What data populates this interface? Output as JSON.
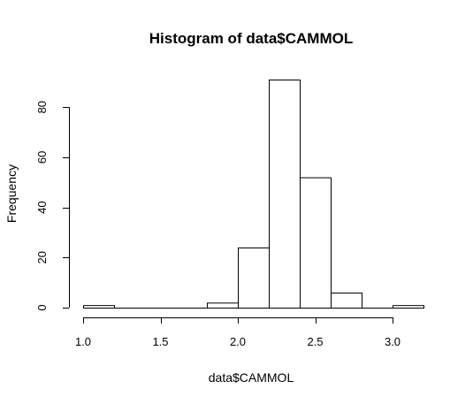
{
  "chart_data": {
    "type": "bar",
    "title": "Histogram of data$CAMMOL",
    "xlabel": "data$CAMMOL",
    "ylabel": "Frequency",
    "bins": [
      {
        "x0": 1.0,
        "x1": 1.2,
        "count": 1
      },
      {
        "x0": 1.2,
        "x1": 1.4,
        "count": 0
      },
      {
        "x0": 1.4,
        "x1": 1.6,
        "count": 0
      },
      {
        "x0": 1.6,
        "x1": 1.8,
        "count": 0
      },
      {
        "x0": 1.8,
        "x1": 2.0,
        "count": 2
      },
      {
        "x0": 2.0,
        "x1": 2.2,
        "count": 24
      },
      {
        "x0": 2.2,
        "x1": 2.4,
        "count": 91
      },
      {
        "x0": 2.4,
        "x1": 2.6,
        "count": 52
      },
      {
        "x0": 2.6,
        "x1": 2.8,
        "count": 6
      },
      {
        "x0": 2.8,
        "x1": 3.0,
        "count": 0
      },
      {
        "x0": 3.0,
        "x1": 3.2,
        "count": 1
      }
    ],
    "xticks": [
      1.0,
      1.5,
      2.0,
      2.5,
      3.0
    ],
    "xtick_labels": [
      "1.0",
      "1.5",
      "2.0",
      "2.5",
      "3.0"
    ],
    "yticks": [
      0,
      20,
      40,
      60,
      80
    ],
    "ytick_labels": [
      "0",
      "20",
      "40",
      "60",
      "80"
    ],
    "xlim": [
      1.0,
      3.2
    ],
    "ylim": [
      0,
      91
    ],
    "grid": false
  }
}
